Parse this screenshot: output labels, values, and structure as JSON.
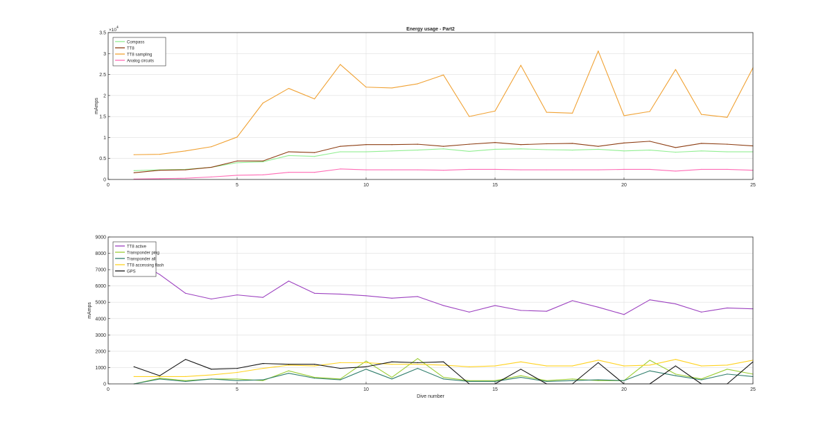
{
  "chart_data": [
    {
      "type": "line",
      "title": "Energy usage - Part2",
      "xlabel": "",
      "ylabel": "mAmps",
      "xlim": [
        0,
        25
      ],
      "ylim": [
        0,
        35000
      ],
      "x_ticks": [
        0,
        5,
        10,
        15,
        20,
        25
      ],
      "y_ticks": [
        0,
        5000,
        10000,
        15000,
        20000,
        25000,
        30000,
        35000
      ],
      "y_tick_labels": [
        "0",
        "0.5",
        "1",
        "1.5",
        "2",
        "2.5",
        "3",
        "3.5"
      ],
      "y_exponent": "4",
      "grid": true,
      "legend_position": "top-left",
      "x": [
        1,
        2,
        3,
        4,
        5,
        6,
        7,
        8,
        9,
        10,
        11,
        12,
        13,
        14,
        15,
        16,
        17,
        18,
        19,
        20,
        21,
        22,
        23,
        24,
        25
      ],
      "series": [
        {
          "name": "Compass",
          "color": "#90ee90",
          "values": [
            2100,
            2300,
            2400,
            2900,
            4000,
            4200,
            5700,
            5500,
            6600,
            6600,
            6800,
            7000,
            7300,
            6700,
            7200,
            7300,
            7100,
            7000,
            7200,
            6800,
            7000,
            6500,
            6800,
            6600,
            6600
          ]
        },
        {
          "name": "TT8",
          "color": "#8b3a0f",
          "values": [
            1600,
            2200,
            2300,
            2900,
            4400,
            4400,
            6600,
            6400,
            7900,
            8300,
            8300,
            8400,
            7900,
            8400,
            8800,
            8300,
            8500,
            8600,
            7900,
            8700,
            9100,
            7600,
            8600,
            8400,
            8000
          ]
        },
        {
          "name": "TT8 sampling",
          "color": "#f0a030",
          "values": [
            5900,
            6000,
            6800,
            7800,
            10100,
            18200,
            21700,
            19200,
            27400,
            22000,
            21800,
            22800,
            24900,
            15000,
            16300,
            27200,
            16000,
            15800,
            30600,
            15200,
            16200,
            26200,
            15500,
            14800,
            26600
          ]
        },
        {
          "name": "Analog circuits",
          "color": "#ff69b4",
          "values": [
            100,
            200,
            300,
            600,
            1000,
            1100,
            1700,
            1700,
            2500,
            2300,
            2300,
            2300,
            2200,
            2400,
            2400,
            2300,
            2300,
            2300,
            2300,
            2400,
            2400,
            2000,
            2400,
            2400,
            2200
          ]
        }
      ]
    },
    {
      "type": "line",
      "title": "",
      "xlabel": "Dive number",
      "ylabel": "mAmps",
      "xlim": [
        0,
        25
      ],
      "ylim": [
        0,
        9000
      ],
      "x_ticks": [
        0,
        5,
        10,
        15,
        20,
        25
      ],
      "y_ticks": [
        0,
        1000,
        2000,
        3000,
        4000,
        5000,
        6000,
        7000,
        8000,
        9000
      ],
      "y_tick_labels": [
        "0",
        "1000",
        "2000",
        "3000",
        "4000",
        "5000",
        "6000",
        "7000",
        "8000",
        "9000"
      ],
      "grid": true,
      "legend_position": "top-left",
      "x": [
        1,
        2,
        3,
        4,
        5,
        6,
        7,
        8,
        9,
        10,
        11,
        12,
        13,
        14,
        15,
        16,
        17,
        18,
        19,
        20,
        21,
        22,
        23,
        24,
        25
      ],
      "series": [
        {
          "name": "TT8 active",
          "color": "#9b3fbf",
          "values": [
            7600,
            6700,
            5550,
            5200,
            5450,
            5300,
            6300,
            5550,
            5500,
            5400,
            5250,
            5350,
            4800,
            4400,
            4800,
            4500,
            4450,
            5100,
            4700,
            4250,
            5150,
            4900,
            4400,
            4650,
            4600
          ]
        },
        {
          "name": "Transponder ping",
          "color": "#9acd32",
          "values": [
            0,
            350,
            200,
            300,
            300,
            200,
            800,
            400,
            300,
            1400,
            400,
            1550,
            400,
            200,
            200,
            500,
            200,
            300,
            200,
            200,
            1450,
            600,
            300,
            900,
            600
          ]
        },
        {
          "name": "Transponder all",
          "color": "#2e7d6b",
          "values": [
            0,
            300,
            150,
            300,
            200,
            250,
            650,
            350,
            250,
            900,
            300,
            950,
            300,
            150,
            150,
            400,
            150,
            200,
            250,
            200,
            800,
            500,
            250,
            600,
            450
          ]
        },
        {
          "name": "TT8 accessing flash",
          "color": "#ffd21f",
          "values": [
            450,
            450,
            450,
            550,
            700,
            950,
            1150,
            1100,
            1300,
            1300,
            1200,
            1200,
            1150,
            1050,
            1100,
            1350,
            1100,
            1100,
            1450,
            1100,
            1150,
            1500,
            1100,
            1150,
            1450
          ]
        },
        {
          "name": "GPS",
          "color": "#111111",
          "values": [
            1050,
            500,
            1500,
            900,
            950,
            1250,
            1200,
            1200,
            950,
            1050,
            1350,
            1300,
            1350,
            0,
            0,
            900,
            0,
            0,
            1300,
            0,
            0,
            1100,
            0,
            0,
            1350
          ]
        }
      ]
    }
  ]
}
